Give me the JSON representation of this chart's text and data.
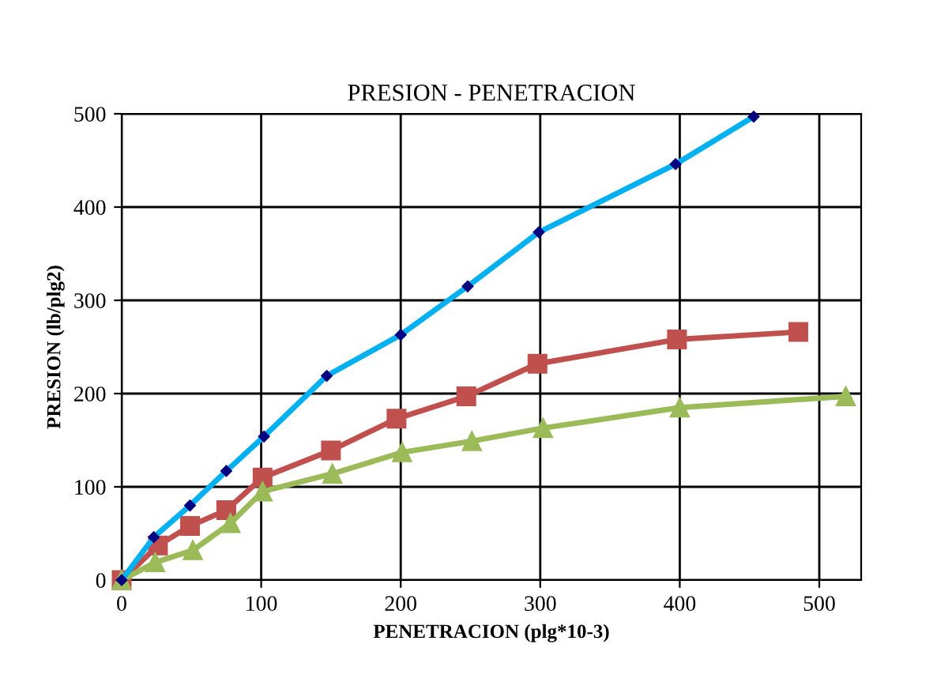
{
  "chart_data": {
    "type": "line",
    "title": "PRESION - PENETRACION",
    "xlabel": "PENETRACION (plg*10-3)",
    "ylabel": "PRESION (lb/plg2)",
    "xlim": [
      0,
      530
    ],
    "ylim": [
      0,
      500
    ],
    "xticks": [
      0,
      100,
      200,
      300,
      400,
      500
    ],
    "yticks": [
      0,
      100,
      200,
      300,
      400,
      500
    ],
    "grid": true,
    "line_style": "solid",
    "series": [
      {
        "color": "#00b0f0",
        "marker": "diamond",
        "x": [
          0,
          23,
          49,
          75,
          102,
          147,
          200,
          248,
          299,
          397,
          453
        ],
        "values": [
          0,
          46,
          80,
          117,
          154,
          219,
          263,
          315,
          373,
          446,
          497
        ]
      },
      {
        "color": "#c0504d",
        "marker": "square",
        "x": [
          0,
          26,
          49,
          75,
          101,
          150,
          197,
          247,
          298,
          398,
          485
        ],
        "values": [
          0,
          37,
          58,
          75,
          110,
          139,
          173,
          197,
          232,
          258,
          266
        ]
      },
      {
        "color": "#9bbb59",
        "marker": "triangle",
        "x": [
          0,
          24,
          51,
          78,
          101,
          151,
          201,
          251,
          302,
          400,
          519
        ],
        "values": [
          0,
          19,
          32,
          61,
          95,
          114,
          137,
          149,
          163,
          185,
          197
        ]
      }
    ]
  }
}
